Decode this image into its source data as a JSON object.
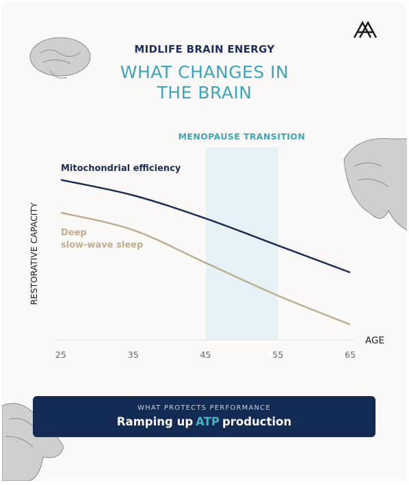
{
  "header": {
    "kicker": "MIDLIFE BRAIN ENERGY",
    "title": "WHAT CHANGES IN\nTHE BRAIN"
  },
  "chart_data": {
    "type": "line",
    "x": [
      25,
      35,
      45,
      55,
      65
    ],
    "xticks": [
      25,
      35,
      45,
      55,
      65
    ],
    "xlim": [
      25,
      65
    ],
    "ylim": [
      0,
      100
    ],
    "xlabel": "AGE",
    "ylabel": "RESTORATIVE CAPACITY",
    "band": {
      "range": [
        45,
        55
      ],
      "label": "MENOPAUSE TRANSITION",
      "color": "#e6f2f5"
    },
    "series": [
      {
        "name": "Mitochondrial efficiency",
        "color": "#1b2d57",
        "values": [
          83,
          75,
          63,
          49,
          35
        ]
      },
      {
        "name": "Deep\nslow-wave sleep",
        "color": "#bfae8e",
        "values": [
          66,
          57,
          40,
          23,
          8
        ]
      }
    ]
  },
  "callout": {
    "label": "WHAT PROTECTS PERFORMANCE",
    "parts": [
      "Ramping up",
      "ATP",
      "production"
    ]
  }
}
